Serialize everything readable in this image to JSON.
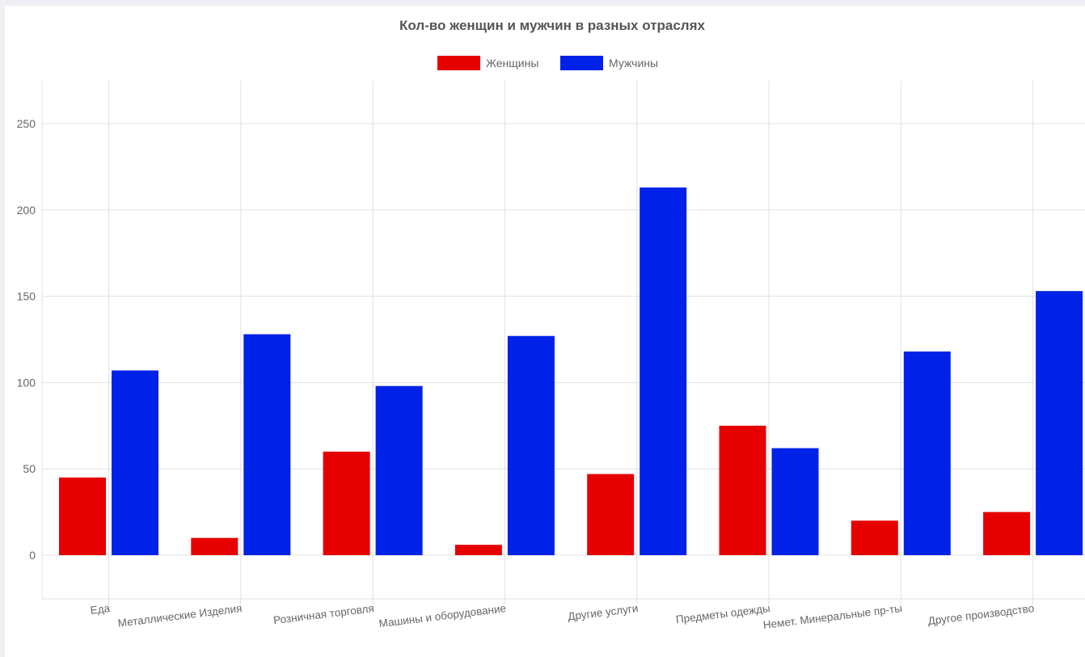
{
  "chart_data": {
    "type": "bar",
    "title": "Кол-во женщин и мужчин в разных отраслях",
    "xlabel": "",
    "ylabel": "",
    "categories": [
      "Еда",
      "Металлические Изделия",
      "Розничная торговля",
      "Машины и оборудование",
      "Другие услуги",
      "Предметы одежды",
      "Немет. Минеральные пр-ты",
      "Другое производство"
    ],
    "series": [
      {
        "name": "Женщины",
        "color": "#e60000",
        "values": [
          45,
          10,
          60,
          6,
          47,
          75,
          20,
          25
        ]
      },
      {
        "name": "Мужчины",
        "color": "#0022e8",
        "values": [
          107,
          128,
          98,
          127,
          213,
          62,
          118,
          153
        ]
      }
    ],
    "ylim": [
      -25,
      275
    ],
    "yticks": [
      "0",
      "50",
      "100",
      "150",
      "200",
      "250"
    ],
    "grid": true,
    "legend_position": "top"
  }
}
